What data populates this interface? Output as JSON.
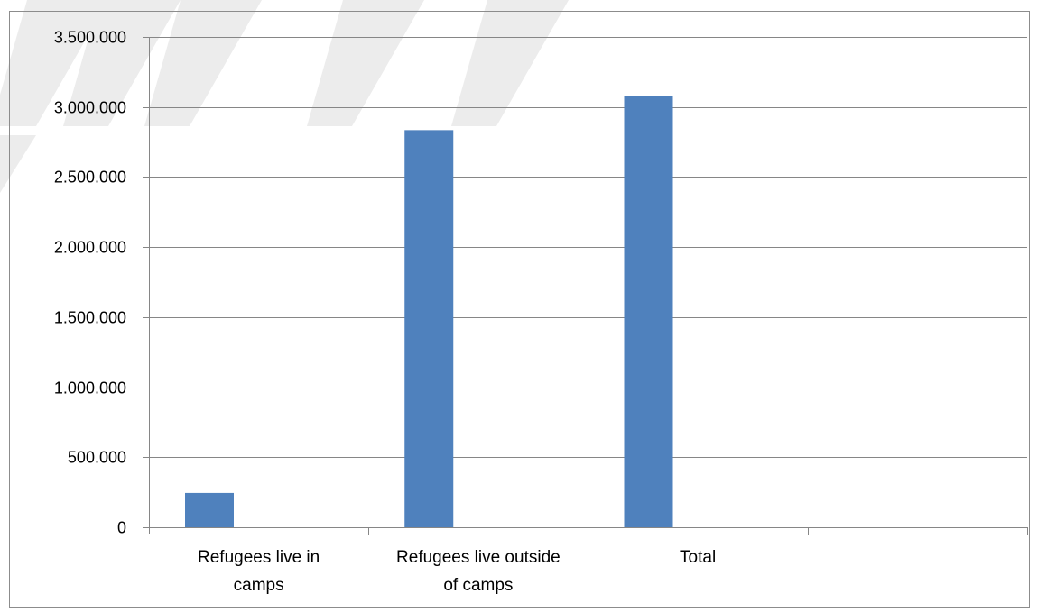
{
  "chart_data": {
    "type": "bar",
    "categories": [
      [
        "Refugees live in",
        "camps"
      ],
      [
        "Refugees live outside",
        "of camps"
      ],
      [
        "Total"
      ],
      [
        ""
      ]
    ],
    "values": [
      245000,
      2835000,
      3080000,
      null
    ],
    "title": "",
    "xlabel": "",
    "ylabel": "",
    "ylim": [
      0,
      3500000
    ],
    "yticks": [
      "0",
      "500.000",
      "1.000.000",
      "1.500.000",
      "2.000.000",
      "2.500.000",
      "3.000.000",
      "3.500.000"
    ],
    "grid": true,
    "legend": "none",
    "bar_color": "#4f81bd",
    "grid_color": "#868686"
  }
}
